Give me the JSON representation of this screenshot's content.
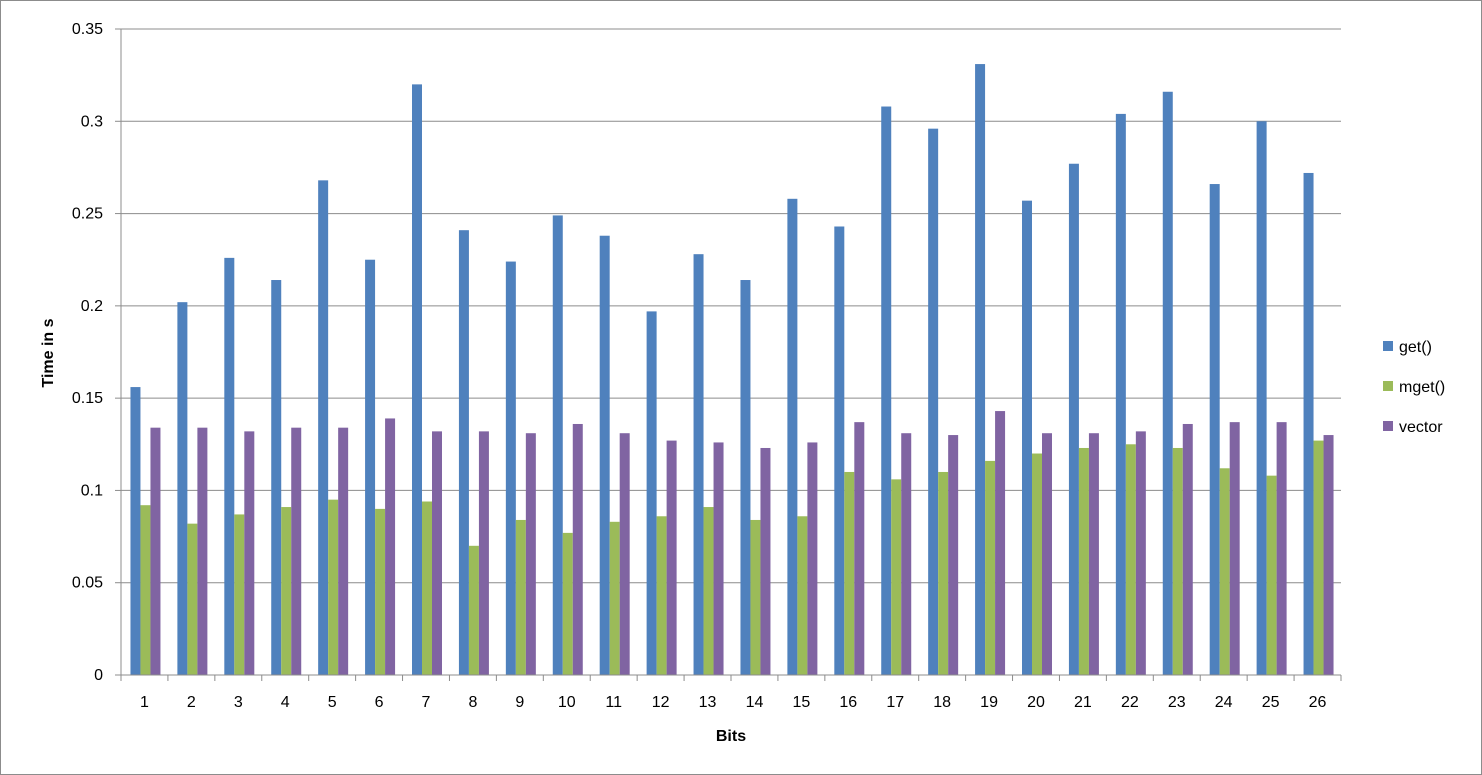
{
  "chart_data": {
    "type": "bar",
    "title": "",
    "xlabel": "Bits",
    "ylabel": "Time in s",
    "ylim": [
      0,
      0.35
    ],
    "yticks": [
      "0",
      "0.05",
      "0.1",
      "0.15",
      "0.2",
      "0.25",
      "0.3",
      "0.35"
    ],
    "ytick_values": [
      0,
      0.05,
      0.1,
      0.15,
      0.2,
      0.25,
      0.3,
      0.35
    ],
    "grid": "horizontal",
    "legend_position": "right",
    "categories": [
      "1",
      "2",
      "3",
      "4",
      "5",
      "6",
      "7",
      "8",
      "9",
      "10",
      "11",
      "12",
      "13",
      "14",
      "15",
      "16",
      "17",
      "18",
      "19",
      "20",
      "21",
      "22",
      "23",
      "24",
      "25",
      "26"
    ],
    "series": [
      {
        "name": "get()",
        "color": "#4f81bd",
        "values": [
          0.156,
          0.202,
          0.226,
          0.214,
          0.268,
          0.225,
          0.32,
          0.241,
          0.224,
          0.249,
          0.238,
          0.197,
          0.228,
          0.214,
          0.258,
          0.243,
          0.308,
          0.296,
          0.331,
          0.257,
          0.277,
          0.304,
          0.316,
          0.266,
          0.3,
          0.272
        ]
      },
      {
        "name": "mget()",
        "color": "#9bbb59",
        "values": [
          0.092,
          0.082,
          0.087,
          0.091,
          0.095,
          0.09,
          0.094,
          0.07,
          0.084,
          0.077,
          0.083,
          0.086,
          0.091,
          0.084,
          0.086,
          0.11,
          0.106,
          0.11,
          0.116,
          0.12,
          0.123,
          0.125,
          0.123,
          0.112,
          0.108,
          0.127
        ]
      },
      {
        "name": "vector",
        "color": "#8064a2",
        "values": [
          0.134,
          0.134,
          0.132,
          0.134,
          0.134,
          0.139,
          0.132,
          0.132,
          0.131,
          0.136,
          0.131,
          0.127,
          0.126,
          0.123,
          0.126,
          0.137,
          0.131,
          0.13,
          0.143,
          0.131,
          0.131,
          0.132,
          0.136,
          0.137,
          0.137,
          0.13
        ]
      }
    ]
  }
}
